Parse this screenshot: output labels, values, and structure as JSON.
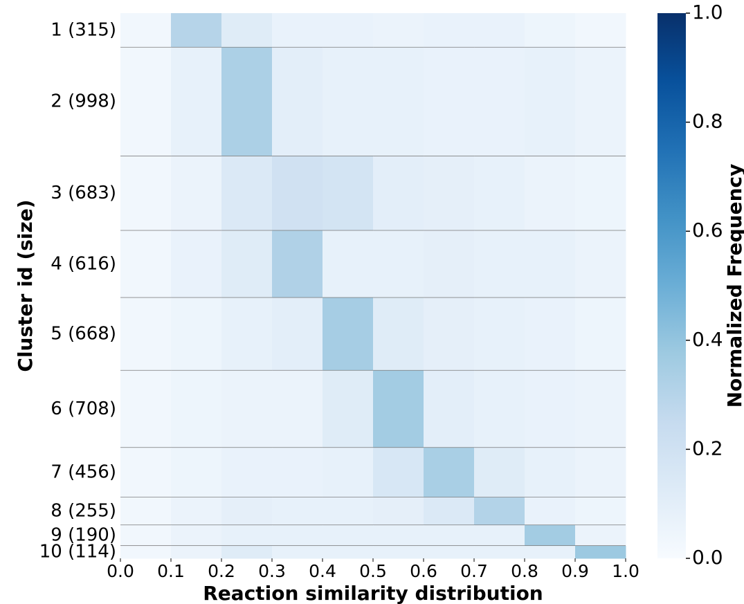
{
  "chart_data": {
    "type": "heatmap",
    "xlabel": "Reaction similarity distribution",
    "ylabel": "Cluster id (size)",
    "colorbar_label": "Normalized Frequency",
    "colormap": "Blues",
    "categories": [
      "1 (315)",
      "2 (998)",
      "3 (683)",
      "4 (616)",
      "5 (668)",
      "6 (708)",
      "7 (456)",
      "8 (255)",
      "9 (190)",
      "10 (114)"
    ],
    "sizes": [
      315,
      998,
      683,
      616,
      668,
      708,
      456,
      255,
      190,
      114
    ],
    "xlim": [
      0,
      1
    ],
    "xticks": [
      {
        "value": 0,
        "label": "0.0"
      },
      0.1,
      0.2,
      0.3,
      0.4,
      0.5,
      0.6,
      0.7,
      0.8,
      0.9,
      {
        "value": 1,
        "label": "1.0"
      }
    ],
    "clim": [
      0,
      1
    ],
    "cticks": [
      {
        "value": 0,
        "label": "0.0"
      },
      0.2,
      0.4,
      0.6,
      0.8,
      {
        "value": 1,
        "label": "1.0"
      }
    ],
    "matrix": [
      [
        0.03,
        0.3,
        0.12,
        0.07,
        0.07,
        0.06,
        0.07,
        0.07,
        0.05,
        0.03
      ],
      [
        0.03,
        0.08,
        0.33,
        0.1,
        0.08,
        0.08,
        0.07,
        0.07,
        0.08,
        0.06
      ],
      [
        0.03,
        0.06,
        0.14,
        0.2,
        0.18,
        0.1,
        0.09,
        0.08,
        0.06,
        0.05
      ],
      [
        0.03,
        0.07,
        0.12,
        0.32,
        0.08,
        0.08,
        0.09,
        0.08,
        0.08,
        0.06
      ],
      [
        0.03,
        0.05,
        0.08,
        0.1,
        0.35,
        0.12,
        0.09,
        0.08,
        0.07,
        0.05
      ],
      [
        0.03,
        0.05,
        0.06,
        0.06,
        0.12,
        0.36,
        0.1,
        0.08,
        0.07,
        0.06
      ],
      [
        0.03,
        0.05,
        0.07,
        0.07,
        0.08,
        0.16,
        0.34,
        0.12,
        0.08,
        0.06
      ],
      [
        0.03,
        0.06,
        0.09,
        0.08,
        0.08,
        0.09,
        0.14,
        0.31,
        0.07,
        0.05
      ],
      [
        0.03,
        0.06,
        0.08,
        0.08,
        0.08,
        0.08,
        0.08,
        0.08,
        0.36,
        0.06
      ],
      [
        0.03,
        0.06,
        0.12,
        0.08,
        0.08,
        0.08,
        0.08,
        0.08,
        0.08,
        0.38
      ]
    ]
  }
}
